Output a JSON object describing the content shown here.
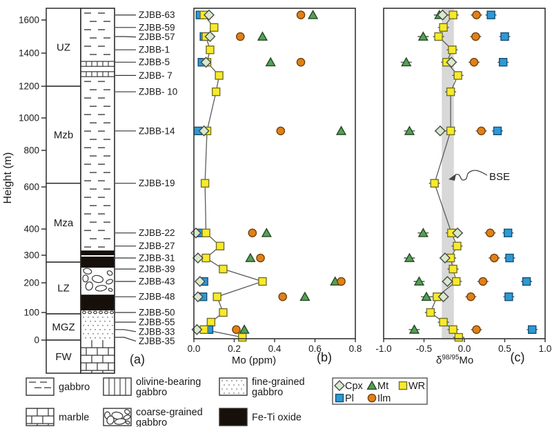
{
  "figure": {
    "ylabel": "Height (m)",
    "panel_a_label": "(a)",
    "panel_b_label": "(b)",
    "panel_c_label": "(c)"
  },
  "axis": {
    "height_ticks": [
      1600,
      1400,
      1200,
      1000,
      800,
      600,
      400,
      300,
      200,
      100,
      0
    ]
  },
  "column": {
    "zones": [
      {
        "name": "UZ",
        "from_m": 1200,
        "to_m": 1670
      },
      {
        "name": "Mzb",
        "from_m": 620,
        "to_m": 1200
      },
      {
        "name": "Mza",
        "from_m": 275,
        "to_m": 620
      },
      {
        "name": "LZ",
        "from_m": 95,
        "to_m": 275
      },
      {
        "name": "MGZ",
        "from_m": 0,
        "to_m": 95
      },
      {
        "name": "FW",
        "from_m": -120,
        "to_m": 0
      }
    ],
    "layers": [
      {
        "pattern": "gabbro",
        "from_m": 1350,
        "to_m": 1670
      },
      {
        "pattern": "olivine",
        "from_m": 1320,
        "to_m": 1350
      },
      {
        "pattern": "gabbro",
        "from_m": 1288,
        "to_m": 1320
      },
      {
        "pattern": "olivine",
        "from_m": 1258,
        "to_m": 1288
      },
      {
        "pattern": "gabbro",
        "from_m": 318,
        "to_m": 1258
      },
      {
        "pattern": "feti",
        "from_m": 300,
        "to_m": 318
      },
      {
        "pattern": "plain",
        "from_m": 295,
        "to_m": 300
      },
      {
        "pattern": "feti",
        "from_m": 255,
        "to_m": 295
      },
      {
        "pattern": "coarse",
        "from_m": 160,
        "to_m": 255
      },
      {
        "pattern": "feti",
        "from_m": 107,
        "to_m": 160
      },
      {
        "pattern": "coarse_thin",
        "from_m": 93,
        "to_m": 107
      },
      {
        "pattern": "fine",
        "from_m": 0,
        "to_m": 93
      },
      {
        "pattern": "marble",
        "from_m": -120,
        "to_m": 0
      }
    ]
  },
  "chart_data": {
    "type": "scatter",
    "ylabel": "Height (m)",
    "ylim": [
      -120,
      1670
    ],
    "grid": false,
    "panels": {
      "b": {
        "xlabel": "Mo (ppm)",
        "xlim": [
          0,
          0.8
        ],
        "x_ticks": [
          0,
          0.2,
          0.4,
          0.6,
          0.8
        ],
        "x_tick_labels": [
          "0.0",
          "0.2",
          "0.4",
          "0.6",
          "0.8"
        ],
        "value_key": "Mo_ppm"
      },
      "c": {
        "xlabel": "δ98/95Mo",
        "xlabel_parts": {
          "delta": "δ",
          "sup": "98/95",
          "rest": "Mo"
        },
        "xlim": [
          -1,
          1
        ],
        "x_ticks": [
          -1,
          -0.5,
          0,
          0.5,
          1
        ],
        "x_tick_labels": [
          "-1.0",
          "-0.5",
          "0.0",
          "0.5",
          "1.0"
        ],
        "bse_band": [
          -0.28,
          -0.13
        ],
        "bse_label": "BSE",
        "value_key": "d98_95Mo"
      }
    },
    "series": [
      "Cpx",
      "Mt",
      "WR",
      "Pl",
      "Ilm"
    ],
    "connected_series": "WR",
    "samples": [
      {
        "name": "ZJBB-63",
        "height_m": 1630,
        "Mo_ppm": {
          "Pl": 0.03,
          "WR": 0.05,
          "Cpx": 0.075,
          "Ilm": 0.53,
          "Mt": 0.59
        },
        "d98_95Mo": {
          "Mt": -0.31,
          "Cpx": -0.27,
          "WR": -0.14,
          "Ilm": 0.15,
          "Pl": 0.33
        }
      },
      {
        "name": "ZJBB-59",
        "height_m": 1555,
        "Mo_ppm": {
          "WR": 0.1
        },
        "d98_95Mo": {
          "WR": -0.26
        }
      },
      {
        "name": "ZJBB-57",
        "height_m": 1500,
        "Mo_ppm": {
          "Pl": 0.05,
          "WR": 0.06,
          "Cpx": 0.08,
          "Ilm": 0.23,
          "Mt": 0.34
        },
        "d98_95Mo": {
          "Mt": -0.51,
          "WR": -0.32,
          "Ilm": 0.14,
          "Pl": 0.5
        }
      },
      {
        "name": "ZJBB-1",
        "height_m": 1420,
        "Mo_ppm": {
          "WR": 0.08
        },
        "d98_95Mo": {
          "WR": -0.15
        }
      },
      {
        "name": "ZJBB-5",
        "height_m": 1345,
        "Mo_ppm": {
          "Pl": 0.04,
          "Cpx": 0.06,
          "WR": 0.065,
          "Mt": 0.38,
          "Ilm": 0.53
        },
        "d98_95Mo": {
          "Mt": -0.72,
          "WR": -0.22,
          "Cpx": -0.16,
          "Ilm": 0.12,
          "Pl": 0.48
        }
      },
      {
        "name": "ZJBB- 7",
        "height_m": 1265,
        "Mo_ppm": {
          "WR": 0.125
        },
        "d98_95Mo": {
          "WR": -0.08
        }
      },
      {
        "name": "ZJBB- 10",
        "height_m": 1165,
        "Mo_ppm": {
          "WR": 0.11
        },
        "d98_95Mo": {
          "WR": -0.17
        }
      },
      {
        "name": "ZJBB-14",
        "height_m": 920,
        "Mo_ppm": {
          "Pl": 0.02,
          "Cpx": 0.05,
          "WR": 0.065,
          "Ilm": 0.43,
          "Mt": 0.73
        },
        "d98_95Mo": {
          "Mt": -0.68,
          "Cpx": -0.3,
          "WR": -0.17,
          "Ilm": 0.21,
          "Pl": 0.41
        }
      },
      {
        "name": "ZJBB-19",
        "height_m": 620,
        "Mo_ppm": {
          "WR": 0.055
        },
        "d98_95Mo": {
          "WR": -0.37
        }
      },
      {
        "name": "ZJBB-22",
        "height_m": 385,
        "Mo_ppm": {
          "Cpx": 0.01,
          "Pl": 0.025,
          "WR": 0.06,
          "Ilm": 0.29,
          "Mt": 0.36
        },
        "d98_95Mo": {
          "Mt": -0.51,
          "WR": -0.16,
          "Cpx": -0.085,
          "Ilm": 0.32,
          "Pl": 0.54
        }
      },
      {
        "name": "ZJBB-27",
        "height_m": 335,
        "Mo_ppm": {
          "WR": 0.13
        },
        "d98_95Mo": {
          "WR": -0.09
        }
      },
      {
        "name": "ZJBB-31",
        "height_m": 290,
        "Mo_ppm": {
          "Cpx": 0.02,
          "WR": 0.06,
          "Mt": 0.28,
          "Ilm": 0.33
        },
        "d98_95Mo": {
          "Mt": -0.68,
          "Cpx": -0.24,
          "WR": -0.17,
          "Ilm": 0.37,
          "Pl": 0.56
        }
      },
      {
        "name": "ZJBB-39",
        "height_m": 250,
        "Mo_ppm": {
          "WR": 0.145
        },
        "d98_95Mo": {
          "WR": -0.14
        }
      },
      {
        "name": "ZJBB-43",
        "height_m": 205,
        "Mo_ppm": {
          "Cpx": 0.03,
          "Pl": 0.05,
          "WR": 0.34,
          "Mt": 0.7,
          "Ilm": 0.73
        },
        "d98_95Mo": {
          "Mt": -0.56,
          "Cpx": -0.21,
          "WR": -0.1,
          "Ilm": 0.23,
          "Pl": 0.77
        }
      },
      {
        "name": "ZJBB-48",
        "height_m": 153,
        "Mo_ppm": {
          "Cpx": 0.02,
          "Pl": 0.045,
          "WR": 0.115,
          "Ilm": 0.44,
          "Mt": 0.55
        },
        "d98_95Mo": {
          "Mt": -0.47,
          "WR": -0.34,
          "Cpx": -0.26,
          "Ilm": 0.08,
          "Pl": 0.55
        }
      },
      {
        "name": "ZJBB-50",
        "height_m": 100,
        "Mo_ppm": {
          "WR": 0.145
        },
        "d98_95Mo": {
          "WR": -0.42
        }
      },
      {
        "name": "ZJBB-55",
        "height_m": 65,
        "Mo_ppm": {
          "WR": 0.085
        },
        "d98_95Mo": {
          "WR": -0.26
        }
      },
      {
        "name": "ZJBB-33",
        "height_m": 38,
        "Mo_ppm": {
          "Cpx": 0.015,
          "WR": 0.05,
          "Pl": 0.075,
          "Ilm": 0.21,
          "Mt": 0.25
        },
        "d98_95Mo": {
          "Mt": -0.62,
          "WR": -0.14,
          "Ilm": 0.15,
          "Pl": 0.84
        }
      },
      {
        "name": "ZJBB-35",
        "height_m": 10,
        "Mo_ppm": {
          "WR": 0.24
        },
        "d98_95Mo": {
          "WR": -0.07
        }
      }
    ]
  },
  "markers": {
    "Cpx": {
      "shape": "diamond",
      "fill": "#d9e9cc",
      "stroke": "#4a4a4a"
    },
    "Mt": {
      "shape": "triangle",
      "fill": "#54a05a",
      "stroke": "#23481f"
    },
    "WR": {
      "shape": "square",
      "fill": "#f8ea29",
      "stroke": "#70702a"
    },
    "Pl": {
      "shape": "square",
      "fill": "#2e99d4",
      "stroke": "#174e74"
    },
    "Ilm": {
      "shape": "circle",
      "fill": "#e08118",
      "stroke": "#74400c"
    }
  },
  "colors": {
    "wr_line": "#5a5a5a",
    "bse_band": "#d8d8d8",
    "frame": "#333333",
    "feti_fill": "#17100a"
  },
  "lith_legend": [
    {
      "pattern": "gabbro",
      "lines": [
        "gabbro"
      ]
    },
    {
      "pattern": "olivine",
      "lines": [
        "olivine-bearing",
        "gabbro"
      ]
    },
    {
      "pattern": "fine",
      "lines": [
        "fine-grained",
        "gabbro"
      ]
    },
    {
      "pattern": "marble",
      "lines": [
        "marble"
      ]
    },
    {
      "pattern": "coarse",
      "lines": [
        "coarse-grained",
        "gabbro"
      ]
    },
    {
      "pattern": "feti",
      "lines": [
        "Fe-Ti oxide"
      ]
    }
  ],
  "symbol_legend": [
    {
      "key": "Cpx",
      "label": "Cpx"
    },
    {
      "key": "Mt",
      "label": "Mt"
    },
    {
      "key": "WR",
      "label": "WR"
    },
    {
      "key": "Pl",
      "label": "Pl"
    },
    {
      "key": "Ilm",
      "label": "Ilm"
    }
  ]
}
